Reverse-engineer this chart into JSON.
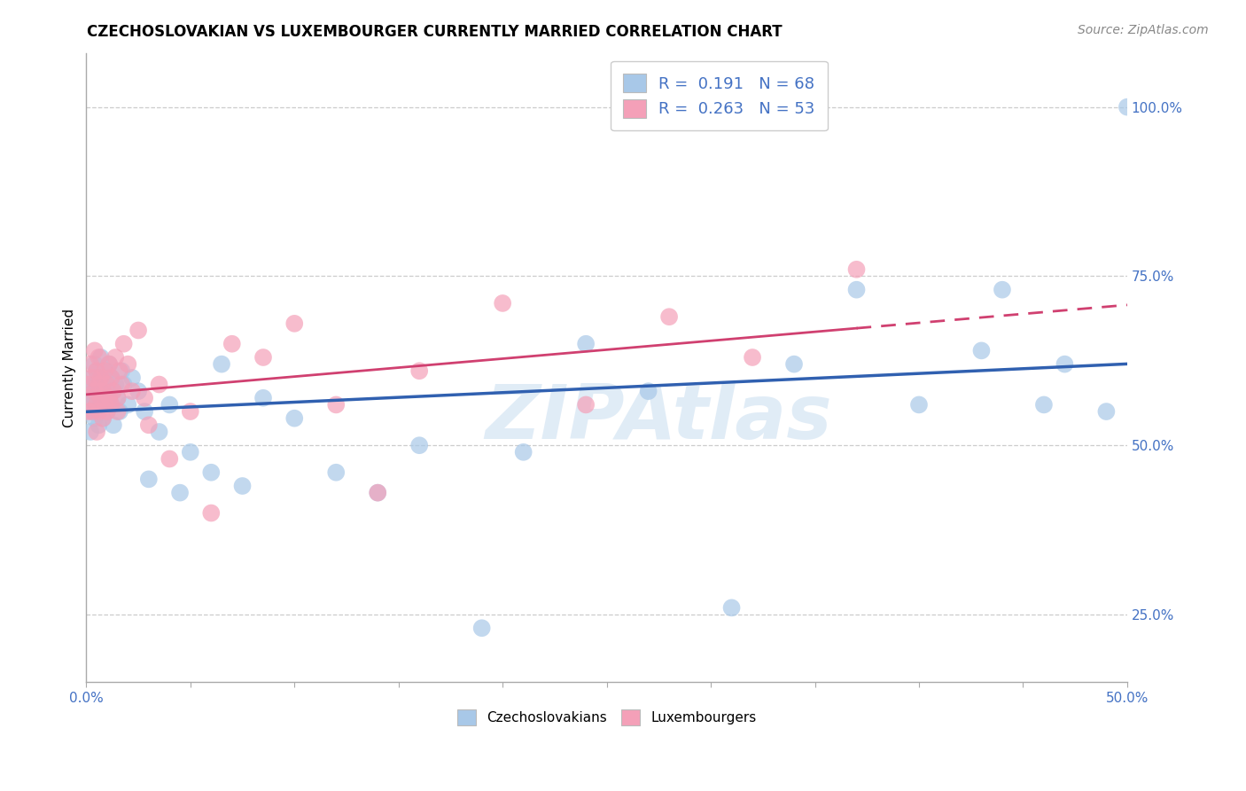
{
  "title": "CZECHOSLOVAKIAN VS LUXEMBOURGER CURRENTLY MARRIED CORRELATION CHART",
  "source": "Source: ZipAtlas.com",
  "ylabel": "Currently Married",
  "xlim": [
    0.0,
    0.5
  ],
  "ylim": [
    0.15,
    1.08
  ],
  "xtick_positions": [
    0.0,
    0.05,
    0.1,
    0.15,
    0.2,
    0.25,
    0.3,
    0.35,
    0.4,
    0.45,
    0.5
  ],
  "xtick_labels": [
    "0.0%",
    "",
    "",
    "",
    "",
    "",
    "",
    "",
    "",
    "",
    "50.0%"
  ],
  "ytick_vals": [
    0.25,
    0.5,
    0.75,
    1.0
  ],
  "ytick_labels": [
    "25.0%",
    "50.0%",
    "75.0%",
    "100.0%"
  ],
  "blue_color": "#a8c8e8",
  "pink_color": "#f4a0b8",
  "blue_line_color": "#3060b0",
  "pink_line_color": "#d04070",
  "legend_r_blue": "0.191",
  "legend_n_blue": "68",
  "legend_r_pink": "0.263",
  "legend_n_pink": "53",
  "title_fontsize": 12,
  "axis_label_fontsize": 11,
  "tick_fontsize": 11,
  "legend_fontsize": 13,
  "blue_scatter_x": [
    0.001,
    0.002,
    0.002,
    0.003,
    0.003,
    0.003,
    0.004,
    0.004,
    0.004,
    0.005,
    0.005,
    0.005,
    0.006,
    0.006,
    0.006,
    0.007,
    0.007,
    0.007,
    0.008,
    0.008,
    0.008,
    0.009,
    0.009,
    0.01,
    0.01,
    0.01,
    0.011,
    0.011,
    0.012,
    0.012,
    0.013,
    0.013,
    0.014,
    0.015,
    0.016,
    0.017,
    0.018,
    0.02,
    0.022,
    0.025,
    0.028,
    0.03,
    0.035,
    0.04,
    0.045,
    0.05,
    0.06,
    0.065,
    0.075,
    0.085,
    0.1,
    0.12,
    0.14,
    0.16,
    0.19,
    0.21,
    0.24,
    0.27,
    0.31,
    0.34,
    0.37,
    0.4,
    0.43,
    0.44,
    0.46,
    0.47,
    0.49,
    0.5
  ],
  "blue_scatter_y": [
    0.56,
    0.52,
    0.58,
    0.55,
    0.6,
    0.57,
    0.54,
    0.59,
    0.62,
    0.56,
    0.61,
    0.58,
    0.53,
    0.57,
    0.6,
    0.55,
    0.59,
    0.63,
    0.57,
    0.6,
    0.54,
    0.58,
    0.56,
    0.61,
    0.55,
    0.59,
    0.57,
    0.62,
    0.56,
    0.6,
    0.58,
    0.53,
    0.59,
    0.57,
    0.55,
    0.61,
    0.59,
    0.56,
    0.6,
    0.58,
    0.55,
    0.45,
    0.52,
    0.56,
    0.43,
    0.49,
    0.46,
    0.62,
    0.44,
    0.57,
    0.54,
    0.46,
    0.43,
    0.5,
    0.23,
    0.49,
    0.65,
    0.58,
    0.26,
    0.62,
    0.73,
    0.56,
    0.64,
    0.73,
    0.56,
    0.62,
    0.55,
    1.0
  ],
  "pink_scatter_x": [
    0.001,
    0.001,
    0.002,
    0.002,
    0.003,
    0.003,
    0.004,
    0.004,
    0.005,
    0.005,
    0.005,
    0.006,
    0.006,
    0.006,
    0.007,
    0.007,
    0.008,
    0.008,
    0.009,
    0.009,
    0.01,
    0.01,
    0.011,
    0.011,
    0.012,
    0.012,
    0.013,
    0.014,
    0.015,
    0.015,
    0.016,
    0.017,
    0.018,
    0.02,
    0.022,
    0.025,
    0.028,
    0.03,
    0.035,
    0.04,
    0.05,
    0.06,
    0.07,
    0.085,
    0.1,
    0.12,
    0.14,
    0.16,
    0.2,
    0.24,
    0.28,
    0.32,
    0.37
  ],
  "pink_scatter_y": [
    0.59,
    0.55,
    0.62,
    0.57,
    0.6,
    0.55,
    0.64,
    0.58,
    0.56,
    0.61,
    0.52,
    0.59,
    0.55,
    0.63,
    0.57,
    0.6,
    0.54,
    0.58,
    0.56,
    0.61,
    0.55,
    0.59,
    0.57,
    0.62,
    0.56,
    0.6,
    0.58,
    0.63,
    0.57,
    0.55,
    0.61,
    0.59,
    0.65,
    0.62,
    0.58,
    0.67,
    0.57,
    0.53,
    0.59,
    0.48,
    0.55,
    0.4,
    0.65,
    0.63,
    0.68,
    0.56,
    0.43,
    0.61,
    0.71,
    0.56,
    0.69,
    0.63,
    0.76
  ]
}
